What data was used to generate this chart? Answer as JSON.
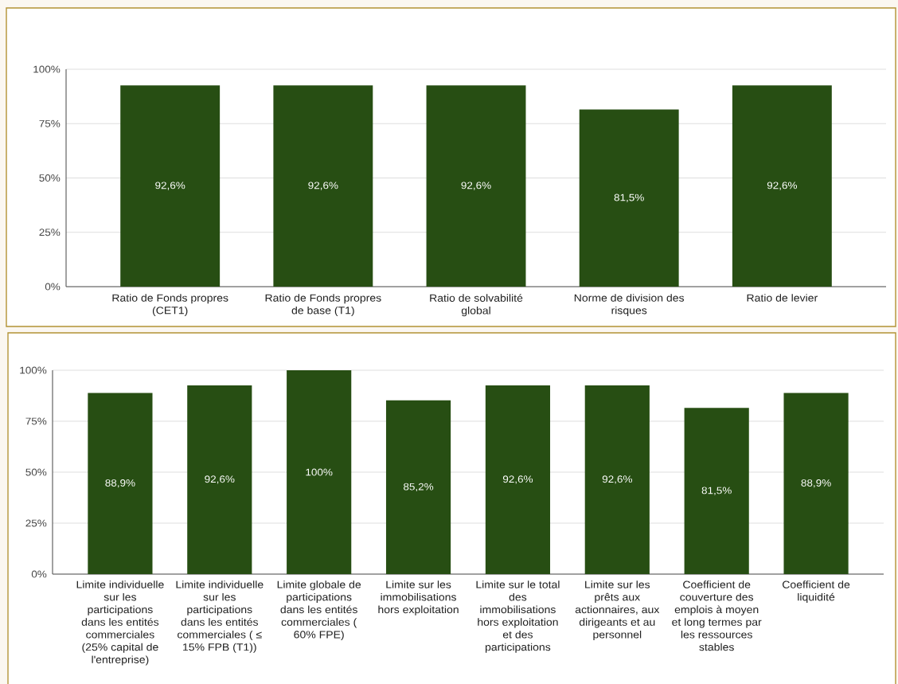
{
  "chart_data": [
    {
      "type": "bar",
      "categories": [
        "Ratio de Fonds propres (CET1)",
        "Ratio de Fonds propres de base (T1)",
        "Ratio de solvabilité global",
        "Norme de division des risques",
        "Ratio de levier"
      ],
      "values": [
        92.6,
        92.6,
        92.6,
        81.5,
        92.6
      ],
      "value_labels": [
        "92,6%",
        "92,6%",
        "92,6%",
        "81,5%",
        "92,6%"
      ],
      "color": "#274e13",
      "ylim": [
        0,
        100
      ],
      "yticks": [
        {
          "value": 0,
          "label": "0%"
        },
        {
          "value": 25,
          "label": "25%"
        },
        {
          "value": 50,
          "label": "50%"
        },
        {
          "value": 75,
          "label": "75%"
        },
        {
          "value": 100,
          "label": "100%"
        }
      ],
      "grid": "y"
    },
    {
      "type": "bar",
      "categories": [
        "Limite individuelle sur les participations dans les entités commerciales (25% capital de l'entreprise)",
        "Limite individuelle sur les participations dans les entités commerciales ( ≤ 15% FPB (T1))",
        "Limite globale de participations dans les entités commerciales ( 60% FPE)",
        "Limite sur les immobilisations hors exploitation",
        "Limite sur le total des immobilisations hors exploitation et des participations",
        "Limite sur les prêts aux actionnaires, aux dirigeants et au personnel",
        "Coefficient de couverture des emplois à moyen et long termes par les ressources stables",
        "Coefficient de liquidité"
      ],
      "values": [
        88.9,
        92.6,
        100,
        85.2,
        92.6,
        92.6,
        81.5,
        88.9
      ],
      "value_labels": [
        "88,9%",
        "92,6%",
        "100%",
        "85,2%",
        "92,6%",
        "92,6%",
        "81,5%",
        "88,9%"
      ],
      "color": "#274e13",
      "ylim": [
        0,
        100
      ],
      "yticks": [
        {
          "value": 0,
          "label": "0%"
        },
        {
          "value": 25,
          "label": "25%"
        },
        {
          "value": 50,
          "label": "50%"
        },
        {
          "value": 75,
          "label": "75%"
        },
        {
          "value": 100,
          "label": "100%"
        }
      ],
      "grid": "y"
    }
  ]
}
